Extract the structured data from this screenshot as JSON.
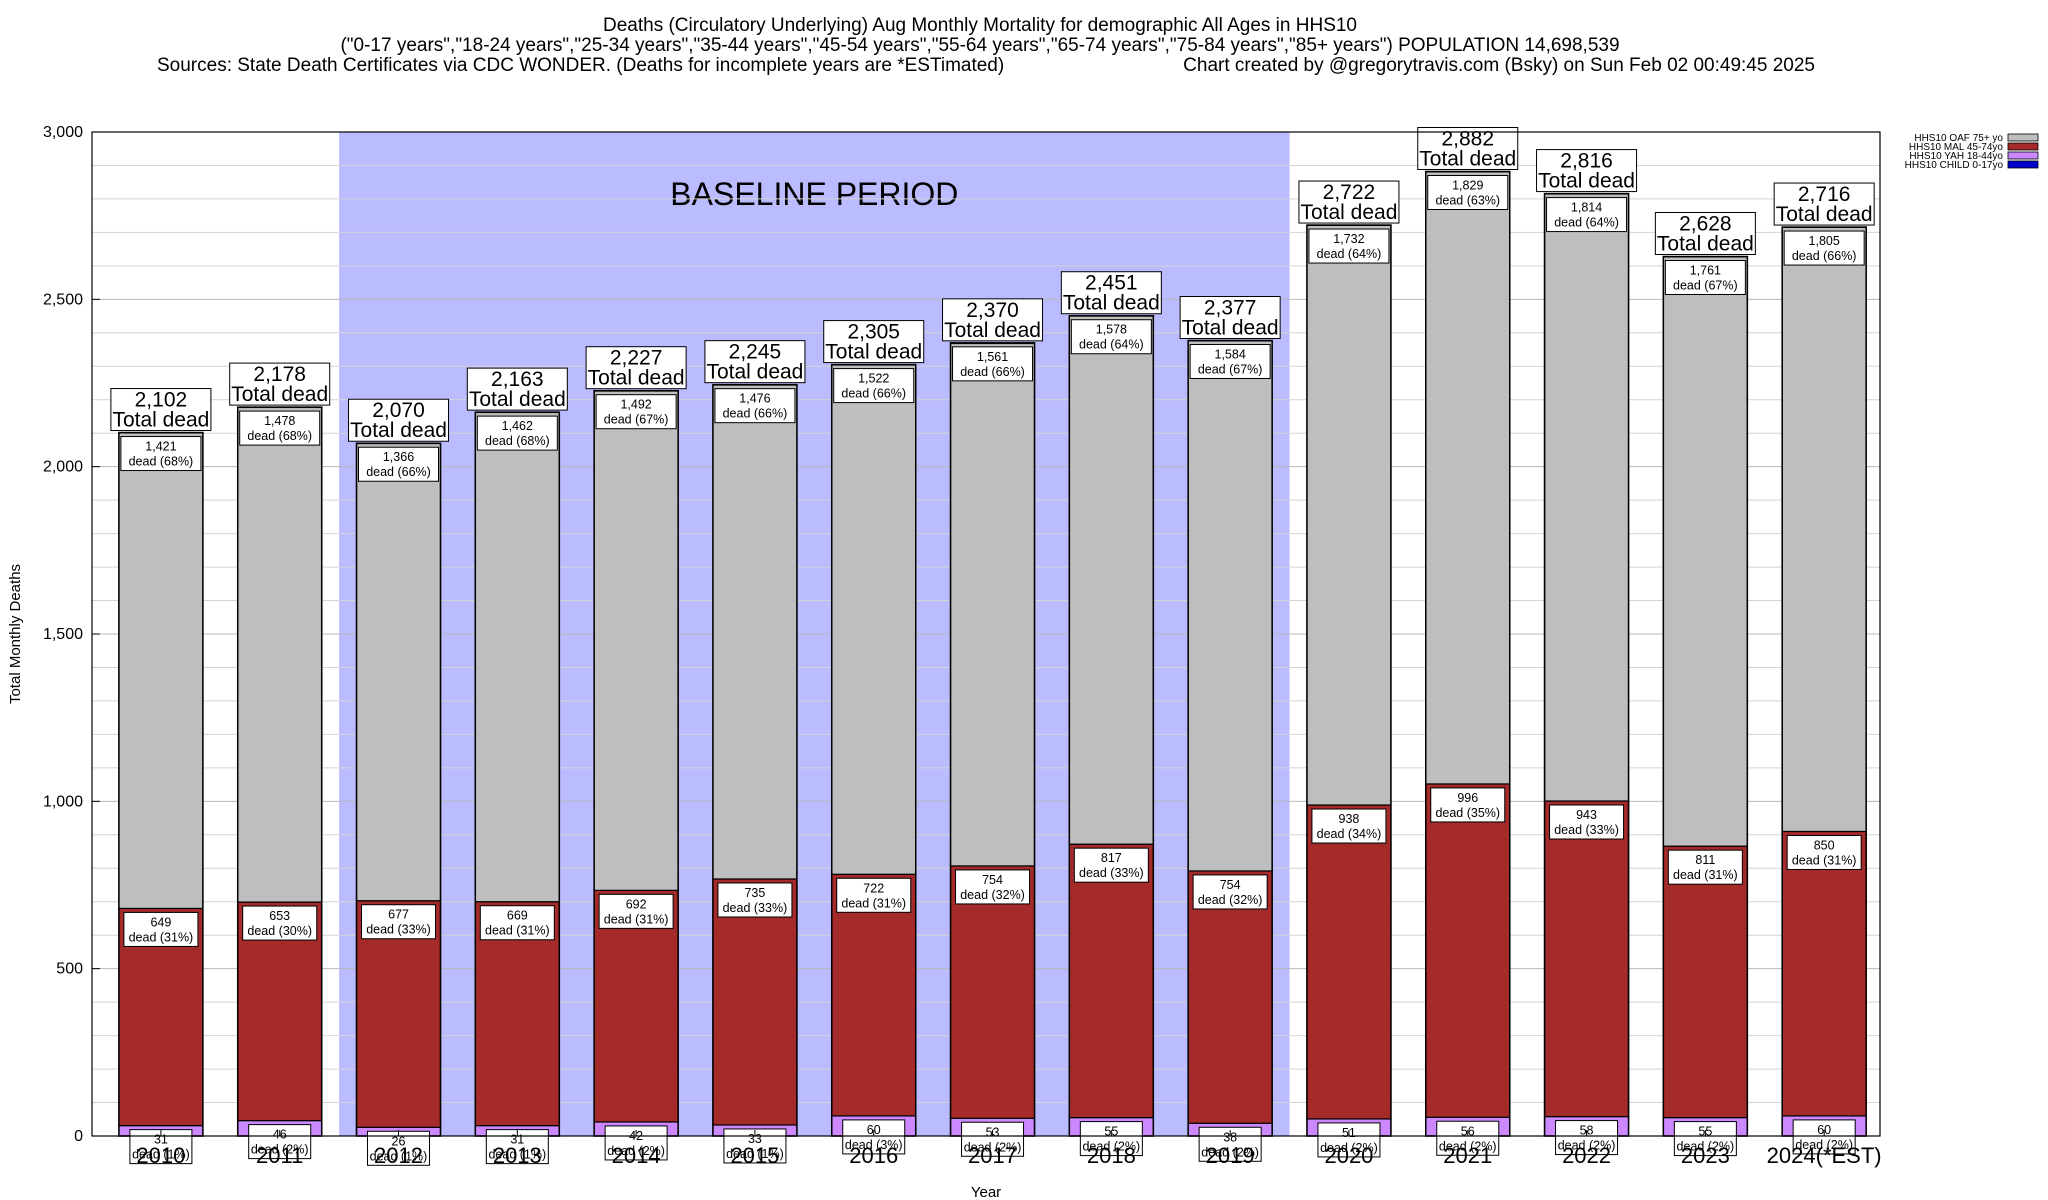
{
  "chart_data": {
    "type": "bar",
    "stacked": true,
    "title_lines": [
      "Deaths (Circulatory Underlying) Aug Monthly Mortality for demographic All Ages in HHS10",
      "(\"0-17 years\",\"18-24 years\",\"25-34 years\",\"35-44 years\",\"45-54 years\",\"55-64 years\",\"65-74 years\",\"75-84 years\",\"85+ years\") POPULATION 14,698,539",
      "Sources: State Death Certificates via CDC WONDER. (Deaths for incomplete years are *ESTimated)",
      "Chart created by @gregorytravis.com (Bsky) on Sun Feb 02 00:49:45 2025"
    ],
    "xlabel": "Year",
    "ylabel": "Total Monthly Deaths",
    "ylim": [
      0,
      3000
    ],
    "yticks": [
      0,
      500,
      1000,
      1500,
      2000,
      2500,
      3000
    ],
    "ytick_labels": [
      "0",
      "500",
      "1,000",
      "1,500",
      "2,000",
      "2,500",
      "3,000"
    ],
    "grid": "horizontal",
    "legend_position": "top-right",
    "categories": [
      "2010",
      "2011",
      "2012",
      "2013",
      "2014",
      "2015",
      "2016",
      "2017",
      "2018",
      "2019",
      "2020",
      "2021",
      "2022",
      "2023",
      "2024(*EST)"
    ],
    "baseline_period": {
      "label": "BASELINE PERIOD",
      "from": "2012",
      "to": "2019",
      "color": "#bbbbff"
    },
    "total_label_suffix": "Total dead",
    "segment_label_word": "dead",
    "series": [
      {
        "name": "HHS10 CHILD 0-17yo",
        "color": "#0000cc",
        "values": [
          0,
          0,
          0,
          0,
          0,
          0,
          0,
          0,
          0,
          0,
          0,
          0,
          0,
          0,
          0
        ]
      },
      {
        "name": "HHS10 YAH 18-44yo",
        "color": "#cc88ff",
        "values": [
          31,
          46,
          26,
          31,
          42,
          33,
          60,
          53,
          55,
          38,
          51,
          56,
          58,
          55,
          60
        ],
        "labels": [
          "31",
          "46",
          "26",
          "31",
          "42",
          "33",
          "60",
          "53",
          "55",
          "38",
          "51",
          "56",
          "58",
          "55",
          "60"
        ],
        "pct": [
          "(1%)",
          "(2%)",
          "(1%)",
          "(1%)",
          "(2%)",
          "(1%)",
          "(3%)",
          "(2%)",
          "(2%)",
          "(2%)",
          "(2%)",
          "(2%)",
          "(2%)",
          "(2%)",
          "(2%)"
        ]
      },
      {
        "name": "HHS10 MAL 45-74yo",
        "color": "#a52a2a",
        "values": [
          649,
          653,
          677,
          669,
          692,
          735,
          722,
          754,
          817,
          754,
          938,
          996,
          943,
          811,
          850
        ],
        "labels": [
          "649",
          "653",
          "677",
          "669",
          "692",
          "735",
          "722",
          "754",
          "817",
          "754",
          "938",
          "996",
          "943",
          "811",
          "850"
        ],
        "pct": [
          "(31%)",
          "(30%)",
          "(33%)",
          "(31%)",
          "(31%)",
          "(33%)",
          "(31%)",
          "(32%)",
          "(33%)",
          "(32%)",
          "(34%)",
          "(35%)",
          "(33%)",
          "(31%)",
          "(31%)"
        ]
      },
      {
        "name": "HHS10 OAF 75+ yo",
        "color": "#bebebe",
        "values": [
          1421,
          1478,
          1366,
          1462,
          1492,
          1476,
          1522,
          1561,
          1578,
          1584,
          1732,
          1829,
          1814,
          1761,
          1805
        ],
        "labels": [
          "1,421",
          "1,478",
          "1,366",
          "1,462",
          "1,492",
          "1,476",
          "1,522",
          "1,561",
          "1,578",
          "1,584",
          "1,732",
          "1,829",
          "1,814",
          "1,761",
          "1,805"
        ],
        "pct": [
          "(68%)",
          "(68%)",
          "(66%)",
          "(68%)",
          "(67%)",
          "(66%)",
          "(66%)",
          "(66%)",
          "(64%)",
          "(67%)",
          "(64%)",
          "(63%)",
          "(64%)",
          "(67%)",
          "(66%)"
        ]
      }
    ],
    "totals": [
      2102,
      2178,
      2070,
      2163,
      2227,
      2245,
      2305,
      2370,
      2451,
      2377,
      2722,
      2882,
      2816,
      2628,
      2716
    ],
    "total_labels": [
      "2,102",
      "2,178",
      "2,070",
      "2,163",
      "2,227",
      "2,245",
      "2,305",
      "2,370",
      "2,451",
      "2,377",
      "2,722",
      "2,882",
      "2,816",
      "2,628",
      "2,716"
    ],
    "legend_order": [
      "HHS10 OAF 75+ yo",
      "HHS10 MAL 45-74yo",
      "HHS10 YAH 18-44yo",
      "HHS10 CHILD 0-17yo"
    ]
  }
}
